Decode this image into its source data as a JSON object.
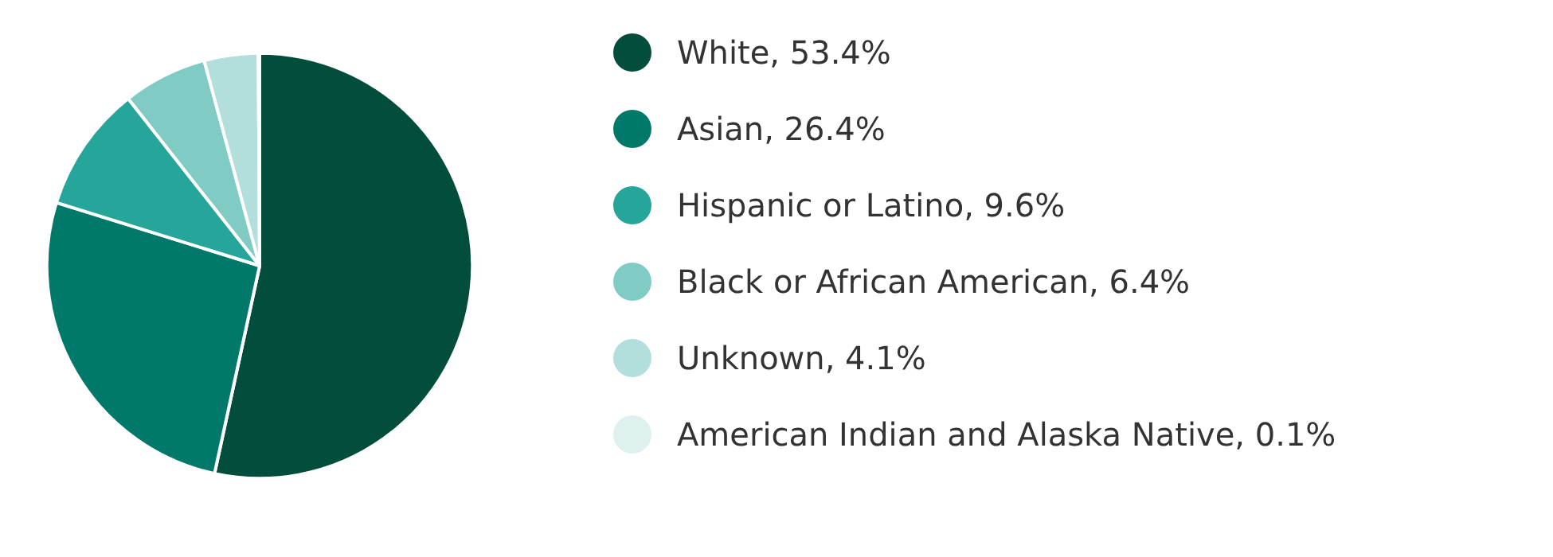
{
  "chart_data": {
    "type": "pie",
    "categories": [
      "White",
      "Asian",
      "Hispanic or Latino",
      "Black or African American",
      "Unknown",
      "American Indian and Alaska Native"
    ],
    "values": [
      53.4,
      26.4,
      9.6,
      6.4,
      4.1,
      0.1
    ],
    "value_labels": [
      "53.4%",
      "26.4%",
      "9.6%",
      "6.4%",
      "4.1%",
      "0.1%"
    ],
    "colors": [
      "#034d3c",
      "#00796b",
      "#26a69a",
      "#80cbc4",
      "#b2dfdb",
      "#dff1ef"
    ],
    "legend": "right"
  }
}
